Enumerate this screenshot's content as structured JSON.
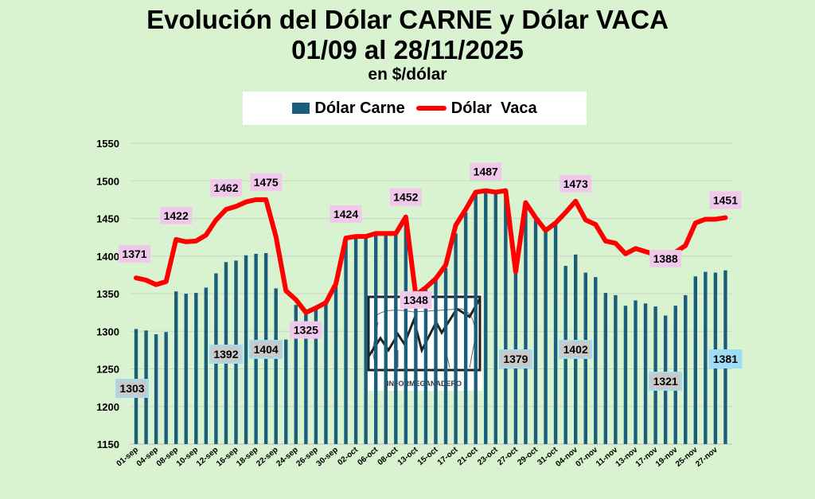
{
  "chart_data": {
    "type": "bar",
    "title": "Evolución del Dólar CARNE y Dólar VACA",
    "subtitle": "01/09 al 28/11/2025",
    "unit": "en $/dólar",
    "xlabel": "",
    "ylabel": "",
    "ylim": [
      1150,
      1550
    ],
    "yticks": [
      1150,
      1200,
      1250,
      1300,
      1350,
      1400,
      1450,
      1500,
      1550
    ],
    "grid": true,
    "legend_placement": "top",
    "tick_labels": [
      "01-sep",
      "04-sep",
      "08-sep",
      "10-sep",
      "12-sep",
      "16-sep",
      "18-sep",
      "22-sep",
      "24-sep",
      "26-sep",
      "30-sep",
      "02-oct",
      "06-oct",
      "08-oct",
      "13-oct",
      "15-oct",
      "17-oct",
      "21-oct",
      "23-oct",
      "27-oct",
      "29-oct",
      "31-oct",
      "04-nov",
      "07-nov",
      "11-nov",
      "13-nov",
      "17-nov",
      "19-nov",
      "25-nov",
      "27-nov"
    ],
    "series": [
      {
        "name": "Dólar Carne",
        "type": "bar",
        "color": "#1b5e7b",
        "values": [
          1303,
          1301,
          1296,
          1299,
          1353,
          1350,
          1351,
          1358,
          1377,
          1392,
          1394,
          1401,
          1403,
          1404,
          1357,
          1289,
          1335,
          1325,
          1330,
          1338,
          1362,
          1422,
          1425,
          1425,
          1428,
          1428,
          1430,
          1450,
          1345,
          1355,
          1370,
          1384,
          1430,
          1458,
          1485,
          1485,
          1483,
          1485,
          1379,
          1469,
          1448,
          1434,
          1441,
          1387,
          1402,
          1378,
          1372,
          1351,
          1348,
          1334,
          1341,
          1337,
          1333,
          1321,
          1334,
          1348,
          1373,
          1379,
          1378,
          1381
        ],
        "labels": [
          {
            "index": 0,
            "text": "1303"
          },
          {
            "index": 9,
            "text": "1392"
          },
          {
            "index": 13,
            "text": "1404"
          },
          {
            "index": 38,
            "text": "1379"
          },
          {
            "index": 44,
            "text": "1402"
          },
          {
            "index": 53,
            "text": "1321"
          },
          {
            "index": 59,
            "text": "1381"
          }
        ]
      },
      {
        "name": "Dólar  Vaca",
        "type": "line",
        "color": "#ff0000",
        "values": [
          1371,
          1368,
          1362,
          1366,
          1422,
          1419,
          1420,
          1428,
          1448,
          1462,
          1466,
          1472,
          1475,
          1475,
          1426,
          1354,
          1342,
          1325,
          1331,
          1338,
          1363,
          1424,
          1426,
          1426,
          1430,
          1430,
          1430,
          1452,
          1348,
          1358,
          1370,
          1388,
          1441,
          1462,
          1485,
          1487,
          1485,
          1487,
          1379,
          1471,
          1451,
          1434,
          1444,
          1458,
          1473,
          1448,
          1442,
          1420,
          1417,
          1403,
          1410,
          1406,
          1402,
          1388,
          1405,
          1414,
          1444,
          1449,
          1449,
          1451
        ],
        "labels": [
          {
            "index": 0,
            "text": "1371"
          },
          {
            "index": 4,
            "text": "1422"
          },
          {
            "index": 9,
            "text": "1462"
          },
          {
            "index": 13,
            "text": "1475"
          },
          {
            "index": 17,
            "text": "1325"
          },
          {
            "index": 21,
            "text": "1424"
          },
          {
            "index": 27,
            "text": "1452"
          },
          {
            "index": 28,
            "text": "1348"
          },
          {
            "index": 35,
            "text": "1487"
          },
          {
            "index": 44,
            "text": "1473"
          },
          {
            "index": 53,
            "text": "1388"
          },
          {
            "index": 59,
            "text": "1451"
          }
        ]
      }
    ]
  },
  "header": {
    "line1": "Evolución del Dólar CARNE y Dólar VACA",
    "line2": "01/09 al 28/11/2025",
    "line3": "en $/dólar"
  },
  "legend": {
    "bar_label": "Dólar Carne",
    "line_label": "Dólar  Vaca"
  },
  "logo": {
    "text": "INFORMEGANADERO"
  }
}
